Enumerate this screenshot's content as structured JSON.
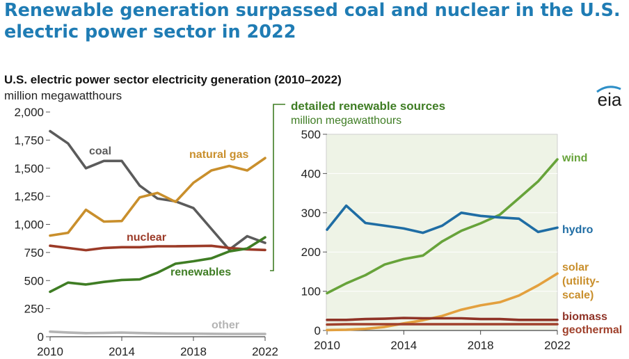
{
  "headline": "Renewable generation surpassed coal and nuclear in the U.S. electric power sector in 2022",
  "logo_text": "eia",
  "colors": {
    "coal": "#5b5b5b",
    "natural_gas": "#c98f2c",
    "nuclear": "#9b3a27",
    "renewables": "#3f7d24",
    "other": "#b4b4b4",
    "wind": "#67a33a",
    "hydro": "#1f6da4",
    "solar": "#e3a03e",
    "biomass": "#8f3327",
    "geothermal": "#a0412c",
    "panel_bg": "#eef3e6",
    "headline": "#1f7cb4"
  },
  "chart_data": [
    {
      "type": "line",
      "title": "U.S. electric power sector electricity generation (2010–2022)",
      "ylabel": "million megawatthours",
      "ylim": [
        0,
        2000
      ],
      "yticks": [
        "0",
        "250",
        "500",
        "750",
        "1,000",
        "1,250",
        "1,500",
        "1,750",
        "2,000"
      ],
      "xticks": [
        "2010",
        "2014",
        "2018",
        "2022"
      ],
      "x": [
        2010,
        2011,
        2012,
        2013,
        2014,
        2015,
        2016,
        2017,
        2018,
        2019,
        2020,
        2021,
        2022
      ],
      "series": [
        {
          "name": "coal",
          "values": [
            1830,
            1720,
            1500,
            1565,
            1565,
            1345,
            1230,
            1205,
            1145,
            960,
            775,
            895,
            835
          ]
        },
        {
          "name": "natural gas",
          "values": [
            900,
            925,
            1130,
            1025,
            1030,
            1240,
            1280,
            1200,
            1370,
            1480,
            1520,
            1480,
            1590
          ]
        },
        {
          "name": "nuclear",
          "values": [
            810,
            790,
            770,
            790,
            797,
            797,
            805,
            805,
            807,
            809,
            790,
            778,
            772
          ]
        },
        {
          "name": "renewables",
          "values": [
            400,
            482,
            465,
            488,
            505,
            510,
            570,
            650,
            672,
            698,
            760,
            785,
            885
          ]
        },
        {
          "name": "other",
          "values": [
            45,
            38,
            32,
            34,
            37,
            33,
            30,
            28,
            28,
            26,
            25,
            25,
            25
          ]
        }
      ]
    },
    {
      "type": "line",
      "title": "detailed renewable sources",
      "ylabel": "million megawatthours",
      "ylim": [
        0,
        500
      ],
      "yticks": [
        "0",
        "100",
        "200",
        "300",
        "400",
        "500"
      ],
      "xticks": [
        "2010",
        "2014",
        "2018",
        "2022"
      ],
      "x": [
        2010,
        2011,
        2012,
        2013,
        2014,
        2015,
        2016,
        2017,
        2018,
        2019,
        2020,
        2021,
        2022
      ],
      "series": [
        {
          "name": "wind",
          "values": [
            95,
            120,
            141,
            168,
            182,
            191,
            227,
            254,
            273,
            295,
            337,
            380,
            436
          ]
        },
        {
          "name": "hydro",
          "values": [
            257,
            318,
            274,
            267,
            260,
            249,
            267,
            300,
            292,
            288,
            285,
            251,
            262
          ]
        },
        {
          "name": "solar (utility-scale)",
          "values": [
            1,
            2,
            4,
            9,
            18,
            26,
            37,
            53,
            64,
            72,
            89,
            115,
            145
          ]
        },
        {
          "name": "biomass",
          "values": [
            27,
            27,
            29,
            30,
            32,
            31,
            31,
            31,
            29,
            29,
            27,
            27,
            27
          ]
        },
        {
          "name": "geothermal",
          "values": [
            15,
            16,
            16,
            16,
            16,
            16,
            16,
            16,
            16,
            16,
            16,
            16,
            16
          ]
        }
      ]
    }
  ],
  "labels": {
    "coal": "coal",
    "natural_gas": "natural gas",
    "nuclear": "nuclear",
    "renewables": "renewables",
    "other": "other",
    "wind": "wind",
    "hydro": "hydro",
    "solar_1": "solar",
    "solar_2": "(utility-",
    "solar_3": "scale)",
    "biomass": "biomass",
    "geothermal": "geothermal"
  }
}
